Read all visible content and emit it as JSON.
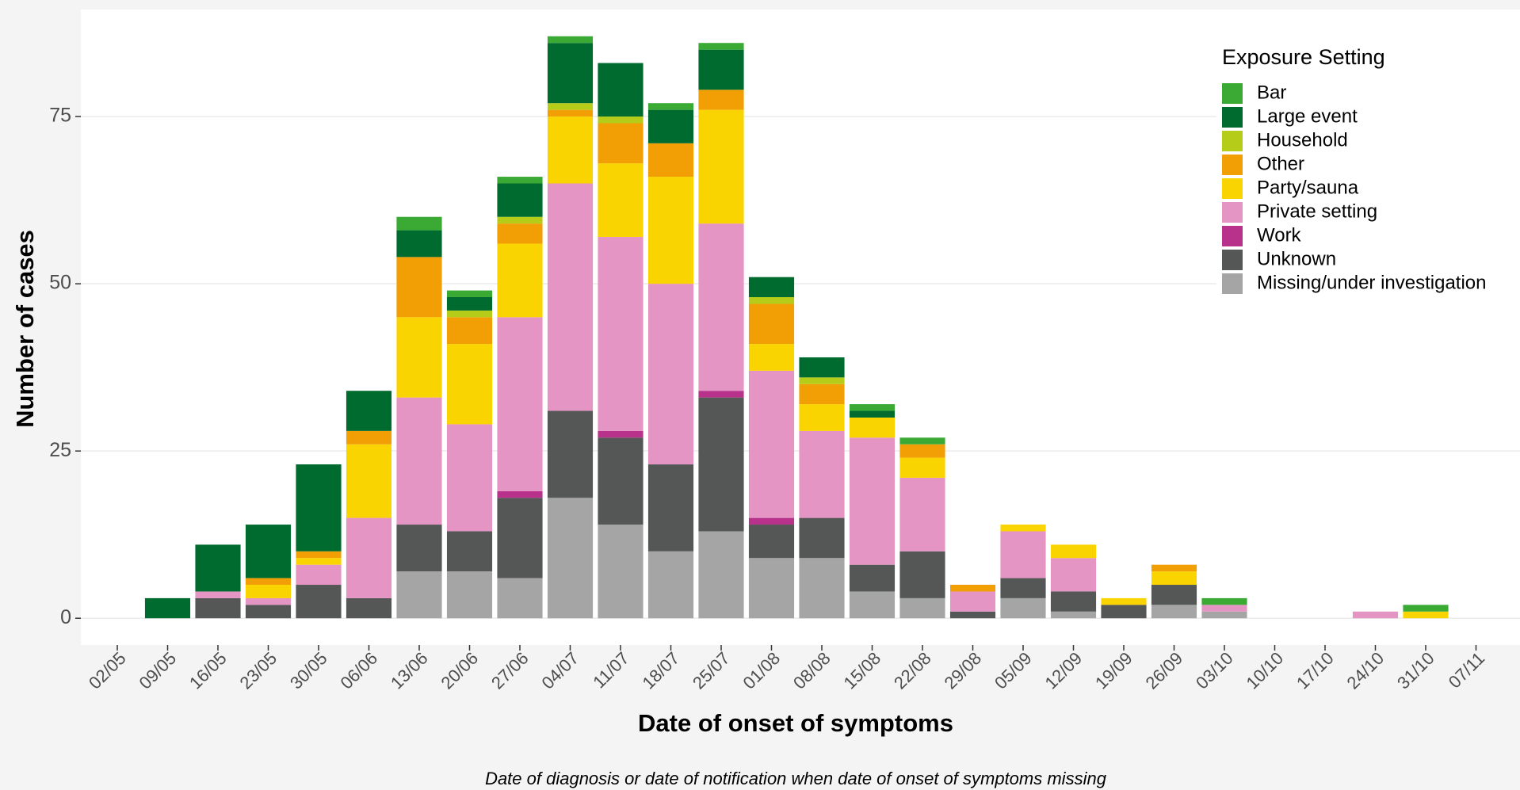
{
  "chart_data": {
    "type": "stacked_bar",
    "ylabel": "Number of cases",
    "xlabel": "Date of onset of symptoms",
    "caption": "Date of diagnosis or date of notification when date of onset of symptoms missing",
    "legend_title": "Exposure Setting",
    "legend_position": "top-right",
    "grid": true,
    "categories": [
      "02/05",
      "09/05",
      "16/05",
      "23/05",
      "30/05",
      "06/06",
      "13/06",
      "20/06",
      "27/06",
      "04/07",
      "11/07",
      "18/07",
      "25/07",
      "01/08",
      "08/08",
      "15/08",
      "22/08",
      "29/08",
      "05/09",
      "12/09",
      "19/09",
      "26/09",
      "03/10",
      "10/10",
      "17/10",
      "24/10",
      "31/10",
      "07/11"
    ],
    "ylim": [
      -4,
      91
    ],
    "yticks": [
      0,
      25,
      50,
      75
    ],
    "series": [
      {
        "name": "Bar",
        "color": "#3aaa35",
        "values": [
          0,
          0,
          0,
          0,
          0,
          0,
          2,
          1,
          1,
          1,
          0,
          1,
          1,
          0,
          0,
          1,
          1,
          0,
          0,
          0,
          0,
          0,
          1,
          0,
          0,
          0,
          1,
          0
        ]
      },
      {
        "name": "Large event",
        "color": "#006b2e",
        "values": [
          0,
          3,
          7,
          8,
          13,
          6,
          4,
          2,
          5,
          9,
          8,
          5,
          6,
          3,
          3,
          1,
          0,
          0,
          0,
          0,
          0,
          0,
          0,
          0,
          0,
          0,
          0,
          0
        ]
      },
      {
        "name": "Household",
        "color": "#b5cc18",
        "values": [
          0,
          0,
          0,
          0,
          0,
          0,
          0,
          1,
          1,
          1,
          1,
          0,
          0,
          1,
          1,
          0,
          0,
          0,
          0,
          0,
          0,
          0,
          0,
          0,
          0,
          0,
          0,
          0
        ]
      },
      {
        "name": "Other",
        "color": "#f29e05",
        "values": [
          0,
          0,
          0,
          1,
          1,
          2,
          9,
          4,
          3,
          1,
          6,
          5,
          3,
          6,
          3,
          0,
          2,
          1,
          0,
          0,
          0,
          1,
          0,
          0,
          0,
          0,
          0,
          0
        ]
      },
      {
        "name": "Party/sauna",
        "color": "#f9d400",
        "values": [
          0,
          0,
          0,
          2,
          1,
          11,
          12,
          12,
          11,
          10,
          11,
          16,
          17,
          4,
          4,
          3,
          3,
          0,
          1,
          2,
          1,
          2,
          0,
          0,
          0,
          0,
          1,
          0
        ]
      },
      {
        "name": "Private setting",
        "color": "#e495c4",
        "values": [
          0,
          0,
          1,
          1,
          3,
          12,
          19,
          16,
          26,
          34,
          29,
          27,
          25,
          22,
          13,
          19,
          11,
          3,
          7,
          5,
          0,
          0,
          1,
          0,
          0,
          1,
          0,
          0
        ]
      },
      {
        "name": "Work",
        "color": "#b8318a",
        "values": [
          0,
          0,
          0,
          0,
          0,
          0,
          0,
          0,
          1,
          0,
          1,
          0,
          1,
          1,
          0,
          0,
          0,
          0,
          0,
          0,
          0,
          0,
          0,
          0,
          0,
          0,
          0,
          0
        ]
      },
      {
        "name": "Unknown",
        "color": "#555757",
        "values": [
          0,
          0,
          3,
          2,
          5,
          3,
          7,
          6,
          12,
          13,
          13,
          13,
          20,
          5,
          6,
          4,
          7,
          1,
          3,
          3,
          2,
          3,
          0,
          0,
          0,
          0,
          0,
          0
        ]
      },
      {
        "name": "Missing/under investigation",
        "color": "#a5a5a5",
        "values": [
          0,
          0,
          0,
          0,
          0,
          0,
          7,
          7,
          6,
          18,
          14,
          10,
          13,
          9,
          9,
          4,
          3,
          0,
          3,
          1,
          0,
          2,
          1,
          0,
          0,
          0,
          0,
          0
        ]
      }
    ]
  }
}
